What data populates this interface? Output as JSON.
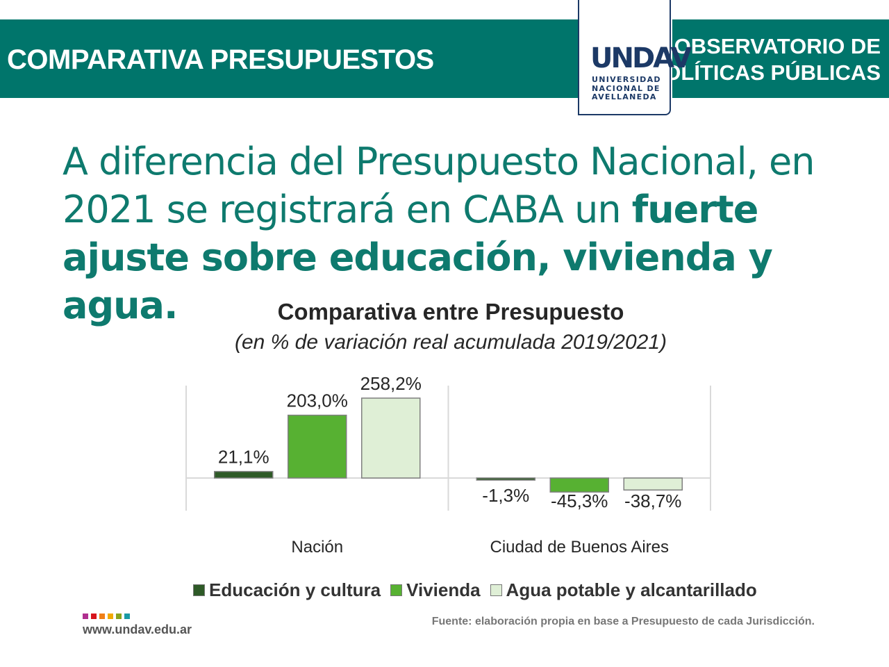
{
  "header": {
    "title": "COMPARATIVA PRESUPUESTOS",
    "observatory_line1": "OBSERVATORIO DE",
    "observatory_line2": "POLÍTICAS PÚBLICAS",
    "logo": {
      "mark": "UNDAV",
      "line1": "UNIVERSIDAD",
      "line2": "NACIONAL DE",
      "line3": "AVELLANEDA"
    }
  },
  "headline": {
    "part1": "A diferencia del Presupuesto Nacional, en 2021 se registrará en CABA un ",
    "bold": "fuerte ajuste sobre educación, vivienda y agua."
  },
  "chart_data": {
    "type": "bar",
    "title": "Comparativa entre Presupuesto",
    "subtitle": "(en % de variación real acumulada 2019/2021)",
    "categories": [
      "Nación",
      "Ciudad de Buenos Aires"
    ],
    "series": [
      {
        "name": "Educación y cultura",
        "color": "#2e5a27",
        "values": [
          21.1,
          -1.3
        ],
        "labels": [
          "21,1%",
          "-1,3%"
        ]
      },
      {
        "name": "Vivienda",
        "color": "#57b132",
        "values": [
          203.0,
          -45.3
        ],
        "labels": [
          "203,0%",
          "-45,3%"
        ]
      },
      {
        "name": "Agua potable y alcantarillado",
        "color": "#dfefd6",
        "values": [
          258.2,
          -38.7
        ],
        "labels": [
          "258,2%",
          "-38,7%"
        ]
      }
    ],
    "ylim": [
      -100,
      270
    ],
    "grid": false,
    "legend": "bottom"
  },
  "footer": {
    "url": "www.undav.edu.ar",
    "source": "Fuente: elaboración propia en base a Presupuesto de cada Jurisdicción.",
    "dot_colors": [
      "#b0308f",
      "#d7141d",
      "#f07f16",
      "#f2a900",
      "#8aa31c",
      "#1a9aa5"
    ]
  }
}
